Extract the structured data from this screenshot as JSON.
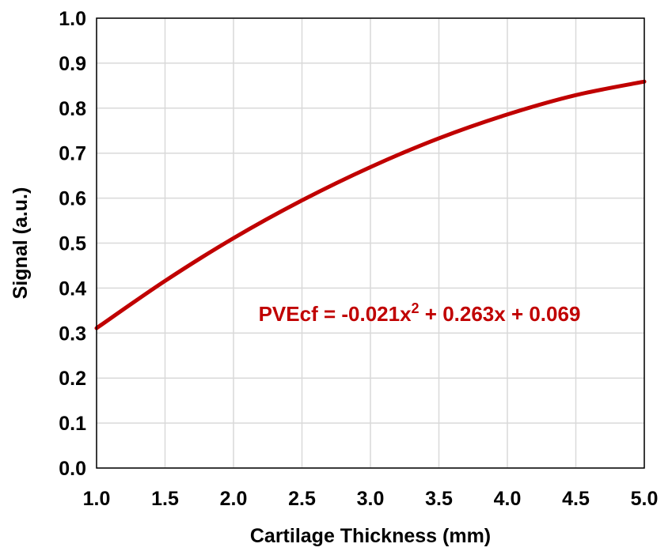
{
  "chart_data": {
    "type": "line",
    "title": "",
    "xlabel": "Cartilage Thickness (mm)",
    "ylabel": "Signal (a.u.)",
    "xlim": [
      1.0,
      5.0
    ],
    "ylim": [
      0.0,
      1.0
    ],
    "xticks": [
      "1.0",
      "1.5",
      "2.0",
      "2.5",
      "3.0",
      "3.5",
      "4.0",
      "4.5",
      "5.0"
    ],
    "yticks": [
      "0.0",
      "0.1",
      "0.2",
      "0.3",
      "0.4",
      "0.5",
      "0.6",
      "0.7",
      "0.8",
      "0.9",
      "1.0"
    ],
    "grid": true,
    "legend": "none",
    "series": [
      {
        "color": "#c00000",
        "x": [
          1.0,
          1.5,
          2.0,
          2.5,
          3.0,
          3.5,
          4.0,
          4.5,
          5.0
        ],
        "y": [
          0.311,
          0.416,
          0.511,
          0.595,
          0.669,
          0.733,
          0.786,
          0.829,
          0.859
        ]
      }
    ],
    "annotations": [
      {
        "text_main": "PVEcf = -0.021x",
        "text_sup": "2",
        "text_rest": " + 0.263x + 0.069",
        "color": "#c00000"
      }
    ]
  }
}
